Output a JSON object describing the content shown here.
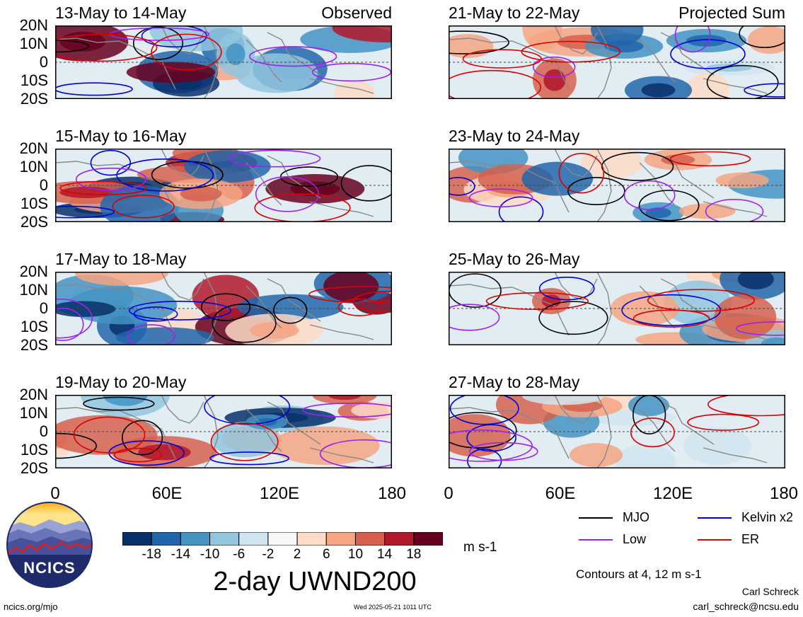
{
  "panels": [
    {
      "title": "13-May to 14-May",
      "tag": "Observed"
    },
    {
      "title": "15-May to 16-May",
      "tag": ""
    },
    {
      "title": "17-May to 18-May",
      "tag": ""
    },
    {
      "title": "19-May to 20-May",
      "tag": ""
    },
    {
      "title": "21-May to 22-May",
      "tag": "Projected Sum"
    },
    {
      "title": "23-May to 24-May",
      "tag": ""
    },
    {
      "title": "25-May to 26-May",
      "tag": ""
    },
    {
      "title": "27-May to 28-May",
      "tag": ""
    }
  ],
  "lat_labels": [
    "20N",
    "10N",
    "0",
    "10S",
    "20S"
  ],
  "lon_labels": [
    "0",
    "60E",
    "120E",
    "180"
  ],
  "colorbar": {
    "colors": [
      "#08306b",
      "#2166ac",
      "#4393c3",
      "#92c5de",
      "#d1e5f0",
      "#f7f7f7",
      "#fddbc7",
      "#f4a582",
      "#d6604d",
      "#b2182b",
      "#67001f"
    ],
    "ticks": [
      "-18",
      "-14",
      "-10",
      "-6",
      "-2",
      "2",
      "6",
      "10",
      "14",
      "18"
    ],
    "unit": "m s-1"
  },
  "title": "2-day UWND200",
  "legend": [
    {
      "label": "MJO",
      "color": "#000000"
    },
    {
      "label": "Kelvin x2",
      "color": "#0000dd"
    },
    {
      "label": "Low",
      "color": "#a020f0"
    },
    {
      "label": "ER",
      "color": "#dd0000"
    }
  ],
  "contours_note": "Contours at 4, 12 m s-1",
  "logo_text": "NCICS",
  "footer": {
    "url": "ncics.org/mjo",
    "timestamp": "Wed 2025-05-21 1011 UTC",
    "author": "Carl Schreck",
    "email": "carl_schreck@ncsu.edu"
  }
}
